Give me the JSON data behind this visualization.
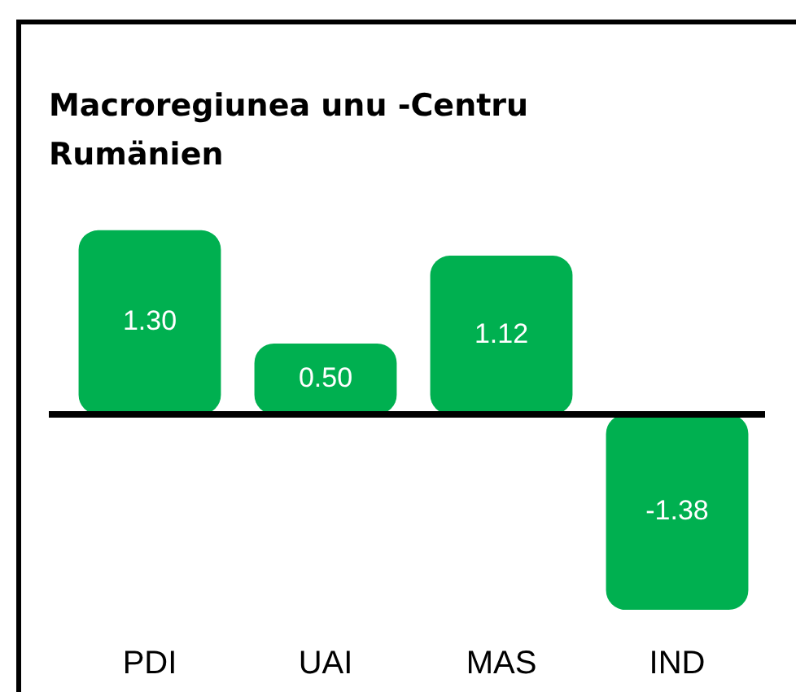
{
  "chart_data": {
    "type": "bar",
    "title": "Macroregiunea unu -Centru Rumänien",
    "categories": [
      "PDI",
      "UAI",
      "MAS",
      "IND"
    ],
    "values": [
      1.3,
      0.5,
      1.12,
      -1.38
    ],
    "value_labels": [
      "1.30",
      "0.50",
      "1.12",
      "-1.38"
    ],
    "color": "#00b050",
    "tick_labels": "x"
  }
}
